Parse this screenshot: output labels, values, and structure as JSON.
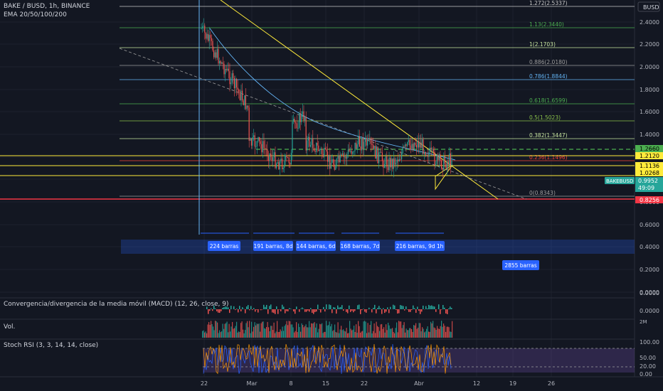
{
  "header": {
    "symbol_line": "BAKE / BUSD, 1h, BINANCE",
    "indicator_line": "EMA 20/50/100/200",
    "currency_badge": "BUSD"
  },
  "price_axis": {
    "ticks": [
      "2.4000",
      "2.2000",
      "2.0000",
      "1.8000",
      "1.6000",
      "1.4000",
      "1.2000",
      "1.0000",
      "0.8000",
      "0.6000",
      "0.4000",
      "0.2000",
      "0.0000"
    ]
  },
  "time_axis": {
    "ticks": [
      "22",
      "Mar",
      "8",
      "15",
      "22",
      "Abr",
      "12",
      "19",
      "26"
    ]
  },
  "fib_levels": [
    {
      "label": "1.272(2.5337)",
      "color": "#c8c8c8"
    },
    {
      "label": "1.13(2.3440)",
      "color": "#4caf50"
    },
    {
      "label": "1(2.1703)",
      "color": "#c8e6a0"
    },
    {
      "label": "0.886(2.0180)",
      "color": "#9e9e9e"
    },
    {
      "label": "0.786(1.8844)",
      "color": "#64b5f6"
    },
    {
      "label": "0.618(1.6599)",
      "color": "#4caf50"
    },
    {
      "label": "0.5(1.5023)",
      "color": "#8bc34a"
    },
    {
      "label": "0.382(1.3447)",
      "color": "#c8e6a0"
    },
    {
      "label": "0.236(1.1496)",
      "color": "#f44336"
    },
    {
      "label": "0(0.8343)",
      "color": "#9e9e9e"
    }
  ],
  "price_tags": [
    {
      "label": "1.2660",
      "bg": "#4caf50",
      "fg": "#000000"
    },
    {
      "label": "1.2120",
      "bg": "#ffeb3b",
      "fg": "#000000"
    },
    {
      "label": "1.1136",
      "bg": "#ffeb3b",
      "fg": "#000000"
    },
    {
      "label": "1.0268",
      "bg": "#ffeb3b",
      "fg": "#000000"
    },
    {
      "label": "0.8256",
      "bg": "#f23645",
      "fg": "#ffffff"
    }
  ],
  "current_price": {
    "symbol": "BAKEBUSD",
    "price": "0.9952",
    "countdown": "49:09"
  },
  "range_boxes": [
    {
      "label": "224 barras"
    },
    {
      "label": "191 barras, 8d"
    },
    {
      "label": "144 barras, 6d"
    },
    {
      "label": "168 barras, 7d"
    },
    {
      "label": "216 barras, 9d 1h"
    },
    {
      "label": "2855 barras"
    }
  ],
  "macd": {
    "label": "Convergencia/divergencia de la media móvil (MACD) (12, 26, close, 9)",
    "ticks": [
      "0.0000",
      "0.0000"
    ]
  },
  "volume": {
    "label": "Vol.",
    "ticks": [
      "2M"
    ]
  },
  "stoch": {
    "label": "Stoch RSI (3, 3, 14, 14, close)",
    "ticks": [
      "100.00",
      "50.00",
      "20.00",
      "0.00"
    ]
  },
  "colors": {
    "background": "#131722",
    "grid": "#1e222d",
    "up": "#26a69a",
    "down": "#ef5350",
    "accent": "#2962ff",
    "stoch_band": "#7e57c2"
  }
}
